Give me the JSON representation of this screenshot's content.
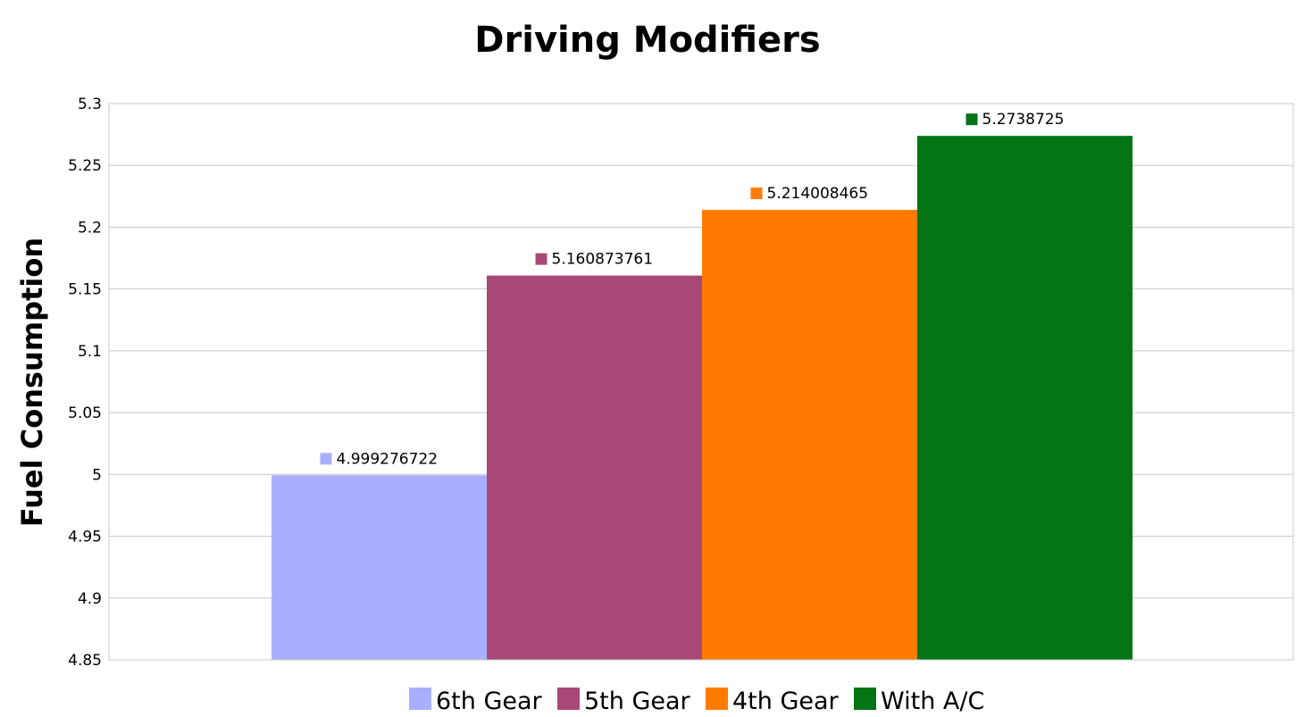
{
  "chart_data": {
    "type": "bar",
    "title": "Driving Modifiers",
    "xlabel": "",
    "ylabel": "Fuel Consumption",
    "ylim": [
      4.85,
      5.3
    ],
    "yticks": [
      "5.3",
      "5.25",
      "5.2",
      "5.15",
      "5.1",
      "5.05",
      "5",
      "4.95",
      "4.9",
      "4.85"
    ],
    "grid": true,
    "legend_position": "bottom",
    "series": [
      {
        "name": "6th Gear",
        "value": 4.999276722,
        "label": "4.999276722",
        "color": "#aaaeff"
      },
      {
        "name": "5th Gear",
        "value": 5.160873761,
        "label": "5.160873761",
        "color": "#a84877"
      },
      {
        "name": "4th Gear",
        "value": 5.214008465,
        "label": "5.214008465",
        "color": "#ff7b00"
      },
      {
        "name": "With A/C",
        "value": 5.2738725,
        "label": "5.2738725",
        "color": "#037514"
      }
    ]
  }
}
